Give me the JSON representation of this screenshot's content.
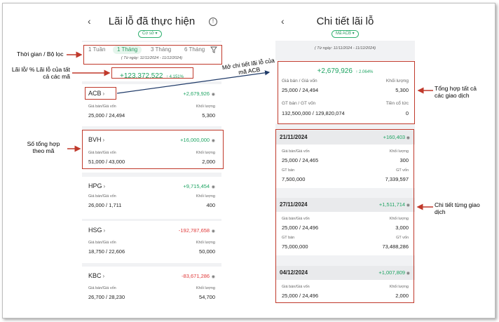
{
  "left": {
    "title": "Lãi lỗ đã thực hiện",
    "back": "‹",
    "info": "!",
    "filter_pill": "Cơ sở ▾",
    "tabs": [
      "1 Tuần",
      "1 Tháng",
      "3 Tháng",
      "6 Tháng"
    ],
    "active_tab": "1 Tháng",
    "date_range": "( Từ ngày: 11/11/2024 - 11/12/2024)",
    "total_pnl": "+123,372,522",
    "total_pct": "↑ 4.151%",
    "stocks": [
      {
        "symbol": "ACB",
        "pnl": "+2,679,926",
        "sign": "pos",
        "price_label": "Giá bán/Giá vốn",
        "qty_label": "Khối lượng",
        "price": "25,000 / 24,494",
        "qty": "5,300"
      },
      {
        "symbol": "BVH",
        "pnl": "+16,000,000",
        "sign": "pos",
        "price_label": "Giá bán/Giá vốn",
        "qty_label": "Khối lượng",
        "price": "51,000 / 43,000",
        "qty": "2,000"
      },
      {
        "symbol": "HPG",
        "pnl": "+9,715,454",
        "sign": "pos",
        "price_label": "Giá bán/Giá vốn",
        "qty_label": "Khối lượng",
        "price": "26,000 / 1,711",
        "qty": "400"
      },
      {
        "symbol": "HSG",
        "pnl": "-192,787,658",
        "sign": "neg",
        "price_label": "Giá bán/Giá vốn",
        "qty_label": "Khối lượng",
        "price": "18,750 / 22,606",
        "qty": "50,000"
      },
      {
        "symbol": "KBC",
        "pnl": "-83,671,286",
        "sign": "neg",
        "price_label": "Giá bán/Giá vốn",
        "qty_label": "Khối lượng",
        "price": "26,700 / 28,230",
        "qty": "54,700"
      }
    ]
  },
  "right": {
    "title": "Chi tiết lãi lỗ",
    "back": "‹",
    "filter_pill": "Mã ACB ▾",
    "date_range": "( Từ ngày: 11/11/2024 - 11/12/2024)",
    "summary": {
      "pnl": "+2,679,926",
      "pct": "↑ 2.064%",
      "label1": "Giá bán / Giá vốn",
      "label2": "Khối lượng",
      "val1": "25,000 / 24,494",
      "val2": "5,300",
      "label3": "GT bán / GT vốn",
      "label4": "Tiền cổ tức",
      "val3": "132,500,000 / 129,820,074",
      "val4": "0"
    },
    "groups": [
      {
        "date": "21/11/2024",
        "pnl": "+160,403",
        "l1": "Giá bán/Giá vốn",
        "l2": "Khối lượng",
        "v1": "25,000 / 24,465",
        "v2": "300",
        "l3": "GT bán",
        "l4": "GT vốn",
        "v3": "7,500,000",
        "v4": "7,339,597"
      },
      {
        "date": "27/11/2024",
        "pnl": "+1,511,714",
        "l1": "Giá bán/Giá vốn",
        "l2": "Khối lượng",
        "v1": "25,000 / 24,496",
        "v2": "3,000",
        "l3": "GT bán",
        "l4": "GT vốn",
        "v3": "75,000,000",
        "v4": "73,488,286"
      },
      {
        "date": "04/12/2024",
        "pnl": "+1,007,809",
        "l1": "Giá bán/Giá vốn",
        "l2": "Khối lượng",
        "v1": "25,000 / 24,496",
        "v2": "2,000"
      }
    ]
  },
  "annotations": {
    "time_filter": "Thời gian / Bộ lọc",
    "total_pnl": "Lãi lỗ/ % Lãi lỗ của tất cả các mã",
    "open_detail": "Mở chi tiết lãi lỗ của mã ACB",
    "stock_summary": "Số tổng hợp theo mã",
    "all_trades": "Tổng hợp tất cả các giao dịch",
    "each_trade": "Chi tiết từng giao dịch"
  },
  "colors": {
    "positive": "#1fa463",
    "negative": "#e03a3a",
    "annotation": "#c0392b",
    "accent": "#2a9b61"
  }
}
